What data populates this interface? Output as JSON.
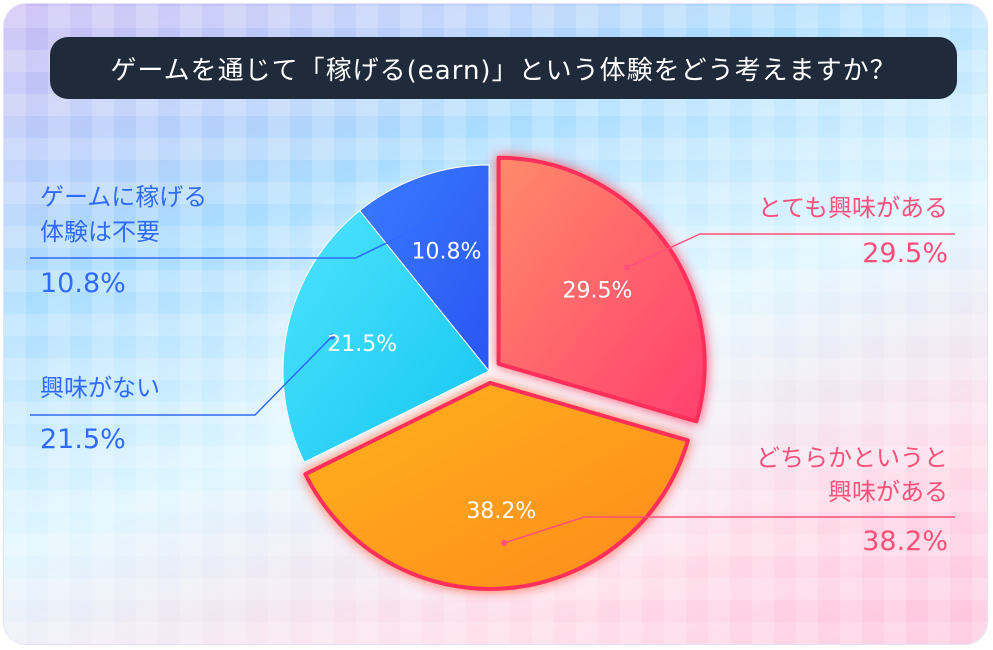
{
  "title": "ゲームを通じて「稼げる(earn)」という体験をどう考えますか？",
  "chart_data": {
    "type": "pie",
    "title": "ゲームを通じて「稼げる(earn)」という体験をどう考えますか？",
    "slices": [
      {
        "label_lines": [
          "とても興味がある"
        ],
        "value": 29.5,
        "value_label": "29.5%",
        "color": "#ff5c7a"
      },
      {
        "label_lines": [
          "どちらかというと",
          "興味がある"
        ],
        "value": 38.2,
        "value_label": "38.2%",
        "color": "#ff9a1f"
      },
      {
        "label_lines": [
          "興味がない"
        ],
        "value": 21.5,
        "value_label": "21.5%",
        "color": "#1fd1f5"
      },
      {
        "label_lines": [
          "ゲームに稼げる",
          "体験は不要"
        ],
        "value": 10.8,
        "value_label": "10.8%",
        "color": "#2f6bff"
      }
    ]
  }
}
